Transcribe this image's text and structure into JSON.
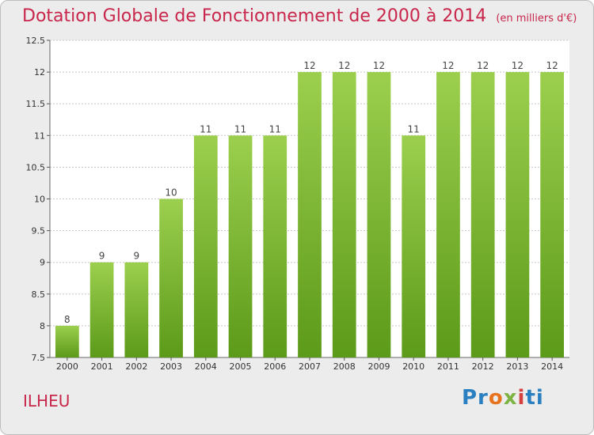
{
  "header": {
    "title": "Dotation Globale de Fonctionnement de 2000 à 2014",
    "subtitle": "(en milliers d'€)"
  },
  "footer": {
    "place": "ILHEU",
    "logo": "Proxiti"
  },
  "colors": {
    "title": "#c8264b",
    "bar_top": "#9ccf4e",
    "bar_bottom": "#5c9a19",
    "grid": "#c8c8c8",
    "background": "#eeeeee"
  },
  "chart_data": {
    "type": "bar",
    "title": "Dotation Globale de Fonctionnement de 2000 à 2014",
    "subtitle": "(en milliers d'€)",
    "xlabel": "",
    "ylabel": "",
    "categories": [
      "2000",
      "2001",
      "2002",
      "2003",
      "2004",
      "2005",
      "2006",
      "2007",
      "2008",
      "2009",
      "2010",
      "2011",
      "2012",
      "2013",
      "2014"
    ],
    "values": [
      8,
      9,
      9,
      10,
      11,
      11,
      11,
      12,
      12,
      12,
      11,
      12,
      12,
      12,
      12
    ],
    "ylim": [
      7.5,
      12.5
    ],
    "yticks": [
      "7.5",
      "8",
      "8.5",
      "9",
      "9.5",
      "10",
      "10.5",
      "11",
      "11.5",
      "12",
      "12.5"
    ],
    "grid": true,
    "data_labels": true
  }
}
